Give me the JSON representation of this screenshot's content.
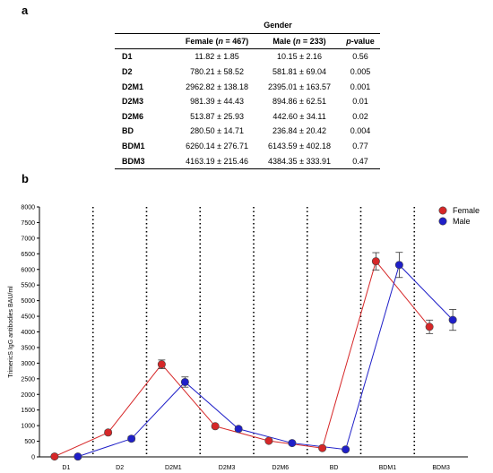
{
  "panel_a_label": "a",
  "panel_b_label": "b",
  "table": {
    "group_header": "Gender",
    "columns": [
      {
        "pre": "",
        "n": "",
        "post": ""
      },
      {
        "pre": "Female (",
        "n": "n",
        "post": " = 467)"
      },
      {
        "pre": "Male (",
        "n": "n",
        "post": " = 233)"
      },
      {
        "pre": "",
        "n": "p",
        "post": "-value"
      }
    ],
    "rows": [
      {
        "label": "D1",
        "female": "11.82 ± 1.85",
        "male": "10.15 ± 2.16",
        "p": "0.56"
      },
      {
        "label": "D2",
        "female": "780.21 ± 58.52",
        "male": "581.81 ± 69.04",
        "p": "0.005"
      },
      {
        "label": "D2M1",
        "female": "2962.82 ± 138.18",
        "male": "2395.01 ± 163.57",
        "p": "0.001"
      },
      {
        "label": "D2M3",
        "female": "981.39 ± 44.43",
        "male": "894.86 ± 62.51",
        "p": "0.01"
      },
      {
        "label": "D2M6",
        "female": "513.87 ± 25.93",
        "male": "442.60 ± 34.11",
        "p": "0.02"
      },
      {
        "label": "BD",
        "female": "280.50 ± 14.71",
        "male": "236.84 ± 20.42",
        "p": "0.004"
      },
      {
        "label": "BDM1",
        "female": "6260.14 ± 276.71",
        "male": "6143.59 ± 402.18",
        "p": "0.77"
      },
      {
        "label": "BDM3",
        "female": "4163.19 ± 215.46",
        "male": "4384.35 ± 333.91",
        "p": "0.47"
      }
    ]
  },
  "chart_data": {
    "type": "line",
    "categories": [
      "D1",
      "D2",
      "D2M1",
      "D2M3",
      "D2M6",
      "BD",
      "BDM1",
      "BDM3"
    ],
    "ylabel": "TrimericS IgG antibodies BAU/ml",
    "xlabel": "",
    "ylim": [
      0,
      8000
    ],
    "ytick_step": 500,
    "grid": false,
    "legend_position": "top-right",
    "series": [
      {
        "name": "Female",
        "color": "#d62728",
        "values": [
          11.82,
          780.21,
          2962.82,
          981.39,
          513.87,
          280.5,
          6260.14,
          4163.19
        ],
        "errors": [
          1.85,
          58.52,
          138.18,
          44.43,
          25.93,
          14.71,
          276.71,
          215.46
        ]
      },
      {
        "name": "Male",
        "color": "#1f1fc8",
        "values": [
          10.15,
          581.81,
          2395.01,
          894.86,
          442.6,
          236.84,
          6143.59,
          4384.35
        ],
        "errors": [
          2.16,
          69.04,
          163.57,
          62.51,
          34.11,
          20.42,
          402.18,
          333.91
        ]
      }
    ]
  }
}
